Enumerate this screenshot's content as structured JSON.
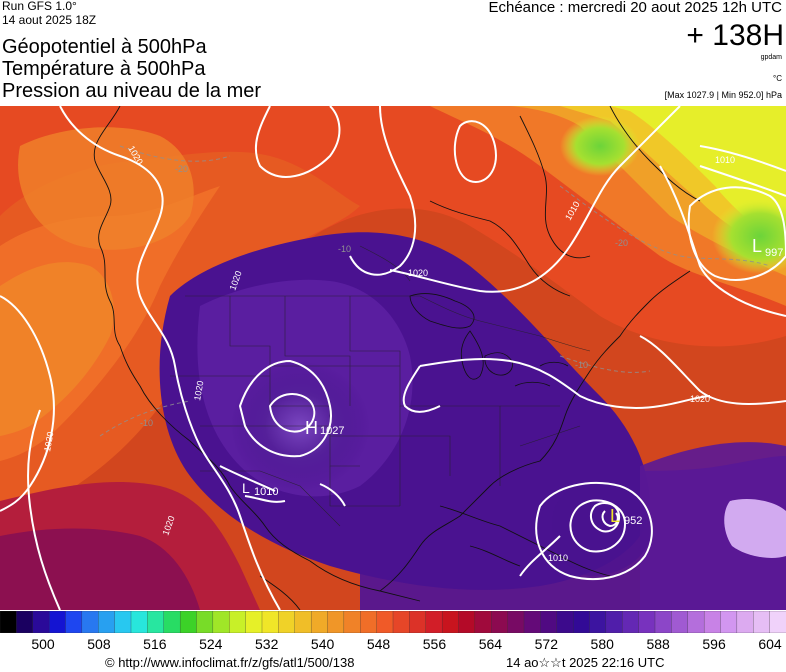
{
  "header": {
    "run": "Run GFS 1.0°",
    "run_date": "14 aout 2025 18Z",
    "titles": [
      "Géopotentiel à 500hPa",
      "Température à 500hPa",
      "Pression au niveau de la mer"
    ],
    "echeance": "Echéance : mercredi 20 aout 2025 12h UTC",
    "offset": "+ 138H",
    "unit_gpdam": "gpdam",
    "unit_celsius": "°C",
    "maxmin": "[Max 1027.9 | Min 952.0] hPa"
  },
  "map": {
    "isobar_labels": [
      {
        "text": "1020"
      },
      {
        "text": "1020"
      },
      {
        "text": "1020"
      },
      {
        "text": "1020"
      },
      {
        "text": "1020"
      },
      {
        "text": "1020"
      },
      {
        "text": "1020"
      },
      {
        "text": "1010"
      },
      {
        "text": "1010"
      },
      {
        "text": "1010"
      }
    ],
    "temp_labels": [
      {
        "text": "-20"
      },
      {
        "text": "-20"
      },
      {
        "text": "-10"
      },
      {
        "text": "-10"
      },
      {
        "text": "-10"
      }
    ],
    "pressure_centers": [
      {
        "type": "H",
        "value": "1027"
      },
      {
        "type": "L",
        "value": "1010"
      },
      {
        "type": "L",
        "value": "952"
      },
      {
        "type": "L",
        "value": "997"
      }
    ]
  },
  "colorbar": {
    "labels": [
      "500",
      "508",
      "516",
      "524",
      "532",
      "540",
      "548",
      "556",
      "564",
      "572",
      "580",
      "588",
      "596",
      "604"
    ],
    "colors": [
      "#000000",
      "#1a0060",
      "#2a0a99",
      "#1414d2",
      "#1e46f0",
      "#2878f0",
      "#28a0f0",
      "#28c8f0",
      "#28e6dc",
      "#28e6a0",
      "#28dc64",
      "#3cd228",
      "#78dc28",
      "#a0e628",
      "#c8f028",
      "#e6f028",
      "#f0e628",
      "#f0d228",
      "#f0be28",
      "#f0aa28",
      "#f09628",
      "#f08228",
      "#f06e28",
      "#f05a28",
      "#e64628",
      "#dc3228",
      "#d21e28",
      "#c8141e",
      "#b40a28",
      "#a00a3c",
      "#8c0a50",
      "#780a64",
      "#640a78",
      "#500a82",
      "#3c0a8c",
      "#320a96",
      "#3c14a0",
      "#501eaa",
      "#6428b4",
      "#7832be",
      "#8c46c8",
      "#a05ad2",
      "#b46edc",
      "#c882e6",
      "#d296f0",
      "#dcaaf0",
      "#e6bef5",
      "#f0d2fa"
    ]
  },
  "footer": {
    "url": "© http://www.infoclimat.fr/z/gfs/atl1/500/138",
    "timestamp": "14 ao☆☆t 2025 22:16 UTC"
  }
}
